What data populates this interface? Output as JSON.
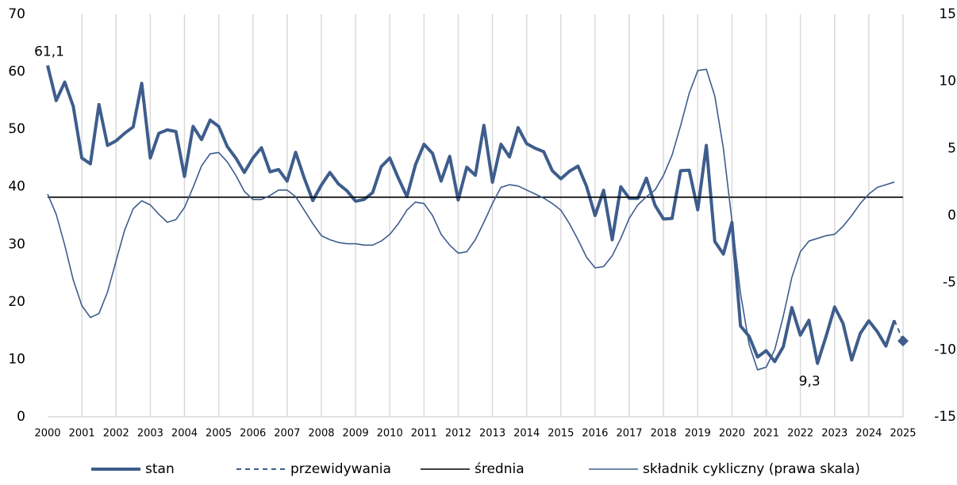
{
  "chart_data": {
    "type": "line",
    "x": [
      2000,
      2000.25,
      2000.5,
      2000.75,
      2001,
      2001.25,
      2001.5,
      2001.75,
      2002,
      2002.25,
      2002.5,
      2002.75,
      2003,
      2003.25,
      2003.5,
      2003.75,
      2004,
      2004.25,
      2004.5,
      2004.75,
      2005,
      2005.25,
      2005.5,
      2005.75,
      2006,
      2006.25,
      2006.5,
      2006.75,
      2007,
      2007.25,
      2007.5,
      2007.75,
      2008,
      2008.25,
      2008.5,
      2008.75,
      2009,
      2009.25,
      2009.5,
      2009.75,
      2010,
      2010.25,
      2010.5,
      2010.75,
      2011,
      2011.25,
      2011.5,
      2011.75,
      2012,
      2012.25,
      2012.5,
      2012.75,
      2013,
      2013.25,
      2013.5,
      2013.75,
      2014,
      2014.25,
      2014.5,
      2014.75,
      2015,
      2015.25,
      2015.5,
      2015.75,
      2016,
      2016.25,
      2016.5,
      2016.75,
      2017,
      2017.25,
      2017.5,
      2017.75,
      2018,
      2018.25,
      2018.5,
      2018.75,
      2019,
      2019.25,
      2019.5,
      2019.75,
      2020,
      2020.25,
      2020.5,
      2020.75,
      2021,
      2021.25,
      2021.5,
      2021.75,
      2022,
      2022.25,
      2022.5,
      2022.75,
      2023,
      2023.25,
      2023.5,
      2023.75,
      2024,
      2024.25,
      2024.5,
      2024.75
    ],
    "series": [
      {
        "name": "stan",
        "color": "#3e5d8c",
        "width": 4,
        "values": [
          61.1,
          55,
          58.2,
          54,
          45,
          44,
          54.3,
          47.2,
          48,
          49.3,
          50.4,
          58,
          45,
          49.3,
          49.9,
          49.6,
          41.8,
          50.5,
          48.2,
          51.6,
          50.5,
          47,
          45,
          42.5,
          45,
          46.8,
          42.6,
          43,
          41,
          46,
          41.5,
          37.6,
          40.3,
          42.5,
          40.5,
          39.3,
          37.5,
          37.8,
          39,
          43.5,
          45,
          41.5,
          38.3,
          43.8,
          47.4,
          45.8,
          41,
          45.3,
          37.7,
          43.4,
          42,
          50.7,
          40.8,
          47.4,
          45.2,
          50.3,
          47.5,
          46.7,
          46.1,
          42.8,
          41.4,
          42.7,
          43.6,
          40.1,
          35,
          39.4,
          30.8,
          40,
          38,
          38,
          41.5,
          36.8,
          34.4,
          34.5,
          42.8,
          42.9,
          36,
          47.2,
          30.5,
          28.3,
          33.8,
          15.8,
          14,
          10.4,
          11.5,
          9.6,
          12.2,
          19,
          14.2,
          16.8,
          9.3,
          14,
          19.1,
          16.2,
          9.9,
          14.5,
          16.7,
          14.8,
          12.3,
          16.8
        ]
      },
      {
        "name": "przewidywania",
        "color": "#3e5d8c",
        "width": 2,
        "dash": "6 5",
        "marker": "diamond",
        "x": [
          2024.75,
          2025
        ],
        "values": [
          16.8,
          13.2
        ]
      },
      {
        "name": "średnia",
        "color": "#000000",
        "width": 1.6,
        "x": [
          2000,
          2025
        ],
        "values": [
          38.2,
          38.2
        ]
      },
      {
        "name": "składnik cykliczny (prawa skala)",
        "color": "#3e5d8c",
        "width": 1.6,
        "axis": "y2",
        "values": [
          1.6,
          0.1,
          -2.2,
          -4.8,
          -6.7,
          -7.6,
          -7.3,
          -5.7,
          -3.4,
          -1.1,
          0.5,
          1.1,
          0.8,
          0.1,
          -0.5,
          -0.3,
          0.6,
          2.1,
          3.7,
          4.6,
          4.7,
          4.0,
          3.0,
          1.8,
          1.2,
          1.2,
          1.5,
          1.9,
          1.9,
          1.4,
          0.4,
          -0.6,
          -1.5,
          -1.8,
          -2.0,
          -2.1,
          -2.1,
          -2.2,
          -2.2,
          -1.9,
          -1.4,
          -0.6,
          0.4,
          1.0,
          0.9,
          0,
          -1.4,
          -2.2,
          -2.8,
          -2.7,
          -1.8,
          -0.5,
          0.9,
          2.1,
          2.3,
          2.2,
          1.9,
          1.6,
          1.3,
          0.9,
          0.4,
          -0.6,
          -1.8,
          -3.1,
          -3.9,
          -3.8,
          -3.0,
          -1.7,
          -0.2,
          0.8,
          1.4,
          1.9,
          3.0,
          4.5,
          6.7,
          9.1,
          10.8,
          10.9,
          8.9,
          5.0,
          -0.4,
          -5.8,
          -9.6,
          -11.5,
          -11.3,
          -10.0,
          -7.5,
          -4.6,
          -2.7,
          -1.9,
          -1.7,
          -1.5,
          -1.4,
          -0.8,
          0,
          0.9,
          1.6,
          2.1,
          2.3,
          2.5
        ]
      }
    ],
    "annotations": [
      {
        "text": "61,1",
        "x": 2000,
        "y": 61.1
      },
      {
        "text": "9,3",
        "x": 2022.5,
        "y": 9.3
      }
    ],
    "xlim": [
      2000,
      2025
    ],
    "xticks": [
      2000,
      2001,
      2002,
      2003,
      2004,
      2005,
      2006,
      2007,
      2008,
      2009,
      2010,
      2011,
      2012,
      2013,
      2014,
      2015,
      2016,
      2017,
      2018,
      2019,
      2020,
      2021,
      2022,
      2023,
      2024,
      2025
    ],
    "ylim": [
      0,
      70
    ],
    "yticks": [
      0,
      10,
      20,
      30,
      40,
      50,
      60,
      70
    ],
    "y2lim": [
      -15,
      15
    ],
    "y2ticks": [
      -15,
      -10,
      -5,
      0,
      5,
      10,
      15
    ],
    "grid": "x",
    "legend": "bottom"
  }
}
